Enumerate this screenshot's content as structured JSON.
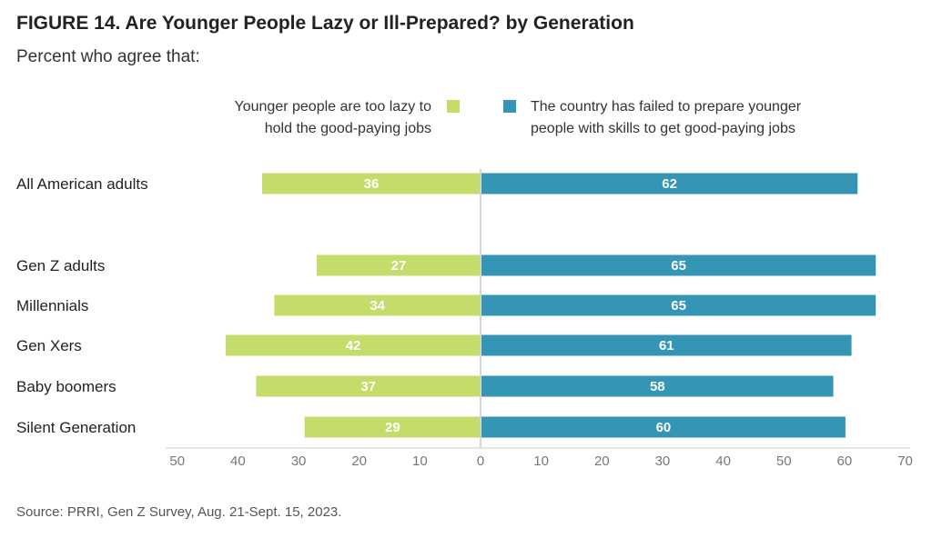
{
  "figure": {
    "title": "FIGURE 14.  Are Younger People Lazy or Ill-Prepared? by Generation",
    "subtitle": "Percent who agree that:",
    "source": "Source: PRRI, Gen Z Survey, Aug. 21-Sept. 15, 2023."
  },
  "chart_data": {
    "type": "bar",
    "orientation": "horizontal-diverging",
    "categories": [
      "All American adults",
      "Gen Z adults",
      "Millennials",
      "Gen Xers",
      "Baby boomers",
      "Silent Generation"
    ],
    "series": [
      {
        "name": "Younger people are too lazy to hold the good-paying jobs",
        "legend_lines": [
          "Younger people are too lazy to",
          "hold the good-paying jobs"
        ],
        "color": "#c4dc6a",
        "direction": "left",
        "values": [
          36,
          27,
          34,
          42,
          37,
          29
        ]
      },
      {
        "name": "The country has failed to prepare younger people with skills to get good-paying jobs",
        "legend_lines": [
          "The country has failed to prepare younger",
          "people with skills to get good-paying jobs"
        ],
        "color": "#3595b4",
        "direction": "right",
        "values": [
          62,
          65,
          65,
          61,
          58,
          60
        ]
      }
    ],
    "x_ticks_left": [
      50,
      40,
      30,
      20,
      10
    ],
    "x_ticks_right": [
      0,
      10,
      20,
      30,
      40,
      50,
      60,
      70
    ],
    "xlim": [
      -50,
      70
    ],
    "grid": false,
    "legend_position": "top"
  }
}
